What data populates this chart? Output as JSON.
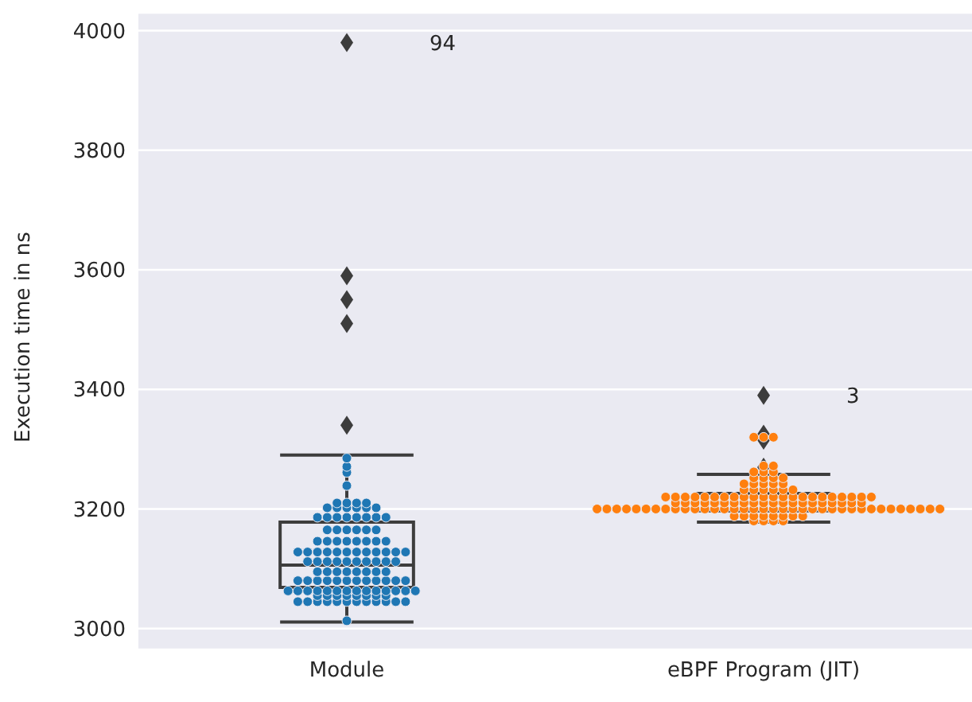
{
  "chart_data": {
    "type": "box",
    "categories": [
      "Module",
      "eBPF Program (JIT)"
    ],
    "ylabel": "Execution time in ns",
    "ylim": [
      2965,
      4030
    ],
    "yticks": [
      3000,
      3200,
      3400,
      3600,
      3800,
      4000
    ],
    "grid": "y",
    "boxes": [
      {
        "low": 3011,
        "q1": 3069,
        "median": 3106,
        "q3": 3178,
        "high": 3290,
        "outliers": [
          3980,
          3590,
          3550,
          3510,
          3340
        ]
      },
      {
        "low": 3178,
        "q1": 3197,
        "median": 3210,
        "q3": 3226,
        "high": 3258,
        "outliers": [
          3390,
          3325,
          3315,
          3270
        ]
      }
    ],
    "series": [
      {
        "type": "scatter",
        "color": "#1f77b4",
        "x": [
          "Module",
          "Module",
          "Module",
          "Module",
          "Module",
          "Module",
          "Module",
          "Module",
          "Module",
          "Module",
          "Module",
          "Module",
          "Module",
          "Module",
          "Module",
          "Module",
          "Module",
          "Module",
          "Module",
          "Module",
          "Module",
          "Module",
          "Module",
          "Module",
          "Module",
          "Module",
          "Module",
          "Module",
          "Module",
          "Module",
          "Module",
          "Module",
          "Module",
          "Module",
          "Module",
          "Module",
          "Module",
          "Module",
          "Module",
          "Module",
          "Module",
          "Module",
          "Module",
          "Module",
          "Module",
          "Module",
          "Module",
          "Module",
          "Module",
          "Module",
          "Module",
          "Module",
          "Module",
          "Module",
          "Module",
          "Module",
          "Module",
          "Module",
          "Module",
          "Module",
          "Module",
          "Module",
          "Module",
          "Module",
          "Module",
          "Module",
          "Module",
          "Module",
          "Module",
          "Module",
          "Module",
          "Module",
          "Module",
          "Module",
          "Module",
          "Module",
          "Module",
          "Module",
          "Module",
          "Module",
          "Module",
          "Module",
          "Module",
          "Module",
          "Module",
          "Module",
          "Module",
          "Module",
          "Module",
          "Module",
          "Module",
          "Module",
          "Module",
          "Module",
          "Module",
          "Module",
          "Module",
          "Module",
          "Module",
          "Module",
          "Module",
          "Module",
          "Module",
          "Module",
          "Module",
          "Module",
          "Module",
          "Module",
          "Module",
          "Module",
          "Module",
          "Module",
          "Module"
        ],
        "values": [
          3013,
          3045,
          3045,
          3045,
          3045,
          3045,
          3045,
          3045,
          3045,
          3045,
          3045,
          3045,
          3045,
          3055,
          3055,
          3055,
          3055,
          3055,
          3055,
          3055,
          3055,
          3063,
          3063,
          3063,
          3063,
          3063,
          3063,
          3063,
          3063,
          3063,
          3063,
          3063,
          3063,
          3063,
          3063,
          3080,
          3080,
          3080,
          3080,
          3080,
          3080,
          3080,
          3080,
          3080,
          3080,
          3080,
          3080,
          3095,
          3095,
          3095,
          3095,
          3095,
          3095,
          3095,
          3095,
          3112,
          3112,
          3112,
          3112,
          3112,
          3112,
          3112,
          3112,
          3112,
          3112,
          3128,
          3128,
          3128,
          3128,
          3128,
          3128,
          3128,
          3128,
          3128,
          3128,
          3128,
          3128,
          3146,
          3146,
          3146,
          3146,
          3146,
          3146,
          3146,
          3146,
          3165,
          3165,
          3165,
          3165,
          3165,
          3165,
          3186,
          3186,
          3186,
          3186,
          3186,
          3186,
          3186,
          3186,
          3202,
          3202,
          3202,
          3202,
          3202,
          3202,
          3210,
          3210,
          3210,
          3210,
          3239,
          3261,
          3271,
          3285
        ]
      },
      {
        "type": "scatter",
        "color": "#ff7f0e",
        "x": [
          "eBPF Program (JIT)",
          "eBPF Program (JIT)",
          "eBPF Program (JIT)",
          "eBPF Program (JIT)",
          "eBPF Program (JIT)",
          "eBPF Program (JIT)",
          "eBPF Program (JIT)",
          "eBPF Program (JIT)",
          "eBPF Program (JIT)",
          "eBPF Program (JIT)",
          "eBPF Program (JIT)",
          "eBPF Program (JIT)",
          "eBPF Program (JIT)",
          "eBPF Program (JIT)",
          "eBPF Program (JIT)",
          "eBPF Program (JIT)",
          "eBPF Program (JIT)",
          "eBPF Program (JIT)",
          "eBPF Program (JIT)",
          "eBPF Program (JIT)",
          "eBPF Program (JIT)",
          "eBPF Program (JIT)",
          "eBPF Program (JIT)",
          "eBPF Program (JIT)",
          "eBPF Program (JIT)",
          "eBPF Program (JIT)",
          "eBPF Program (JIT)",
          "eBPF Program (JIT)",
          "eBPF Program (JIT)",
          "eBPF Program (JIT)",
          "eBPF Program (JIT)",
          "eBPF Program (JIT)",
          "eBPF Program (JIT)",
          "eBPF Program (JIT)",
          "eBPF Program (JIT)",
          "eBPF Program (JIT)",
          "eBPF Program (JIT)",
          "eBPF Program (JIT)",
          "eBPF Program (JIT)",
          "eBPF Program (JIT)",
          "eBPF Program (JIT)",
          "eBPF Program (JIT)",
          "eBPF Program (JIT)",
          "eBPF Program (JIT)",
          "eBPF Program (JIT)",
          "eBPF Program (JIT)",
          "eBPF Program (JIT)",
          "eBPF Program (JIT)",
          "eBPF Program (JIT)",
          "eBPF Program (JIT)",
          "eBPF Program (JIT)",
          "eBPF Program (JIT)",
          "eBPF Program (JIT)",
          "eBPF Program (JIT)",
          "eBPF Program (JIT)",
          "eBPF Program (JIT)",
          "eBPF Program (JIT)",
          "eBPF Program (JIT)",
          "eBPF Program (JIT)",
          "eBPF Program (JIT)",
          "eBPF Program (JIT)",
          "eBPF Program (JIT)",
          "eBPF Program (JIT)",
          "eBPF Program (JIT)",
          "eBPF Program (JIT)",
          "eBPF Program (JIT)",
          "eBPF Program (JIT)",
          "eBPF Program (JIT)",
          "eBPF Program (JIT)",
          "eBPF Program (JIT)",
          "eBPF Program (JIT)",
          "eBPF Program (JIT)",
          "eBPF Program (JIT)",
          "eBPF Program (JIT)",
          "eBPF Program (JIT)",
          "eBPF Program (JIT)",
          "eBPF Program (JIT)",
          "eBPF Program (JIT)",
          "eBPF Program (JIT)",
          "eBPF Program (JIT)",
          "eBPF Program (JIT)",
          "eBPF Program (JIT)",
          "eBPF Program (JIT)",
          "eBPF Program (JIT)",
          "eBPF Program (JIT)",
          "eBPF Program (JIT)",
          "eBPF Program (JIT)",
          "eBPF Program (JIT)",
          "eBPF Program (JIT)",
          "eBPF Program (JIT)",
          "eBPF Program (JIT)",
          "eBPF Program (JIT)",
          "eBPF Program (JIT)",
          "eBPF Program (JIT)",
          "eBPF Program (JIT)",
          "eBPF Program (JIT)",
          "eBPF Program (JIT)",
          "eBPF Program (JIT)",
          "eBPF Program (JIT)",
          "eBPF Program (JIT)",
          "eBPF Program (JIT)",
          "eBPF Program (JIT)",
          "eBPF Program (JIT)",
          "eBPF Program (JIT)",
          "eBPF Program (JIT)",
          "eBPF Program (JIT)",
          "eBPF Program (JIT)",
          "eBPF Program (JIT)",
          "eBPF Program (JIT)",
          "eBPF Program (JIT)",
          "eBPF Program (JIT)",
          "eBPF Program (JIT)",
          "eBPF Program (JIT)"
        ],
        "values": [
          3180,
          3180,
          3180,
          3180,
          3188,
          3188,
          3188,
          3188,
          3188,
          3188,
          3188,
          3188,
          3200,
          3200,
          3200,
          3200,
          3200,
          3200,
          3200,
          3200,
          3200,
          3200,
          3200,
          3200,
          3200,
          3200,
          3200,
          3200,
          3200,
          3200,
          3200,
          3200,
          3200,
          3200,
          3200,
          3200,
          3200,
          3200,
          3200,
          3200,
          3200,
          3200,
          3200,
          3200,
          3200,
          3200,
          3200,
          3200,
          3210,
          3210,
          3210,
          3210,
          3210,
          3210,
          3210,
          3210,
          3210,
          3210,
          3210,
          3210,
          3210,
          3210,
          3210,
          3210,
          3210,
          3210,
          3210,
          3210,
          3220,
          3220,
          3220,
          3220,
          3220,
          3220,
          3220,
          3220,
          3220,
          3220,
          3220,
          3220,
          3220,
          3220,
          3220,
          3220,
          3220,
          3220,
          3220,
          3220,
          3220,
          3220,
          3232,
          3232,
          3232,
          3232,
          3232,
          3232,
          3242,
          3242,
          3242,
          3242,
          3242,
          3252,
          3252,
          3252,
          3252,
          3262,
          3262,
          3262,
          3272,
          3272,
          3320,
          3320,
          3320
        ]
      }
    ],
    "annotations": [
      "94",
      "3"
    ]
  }
}
